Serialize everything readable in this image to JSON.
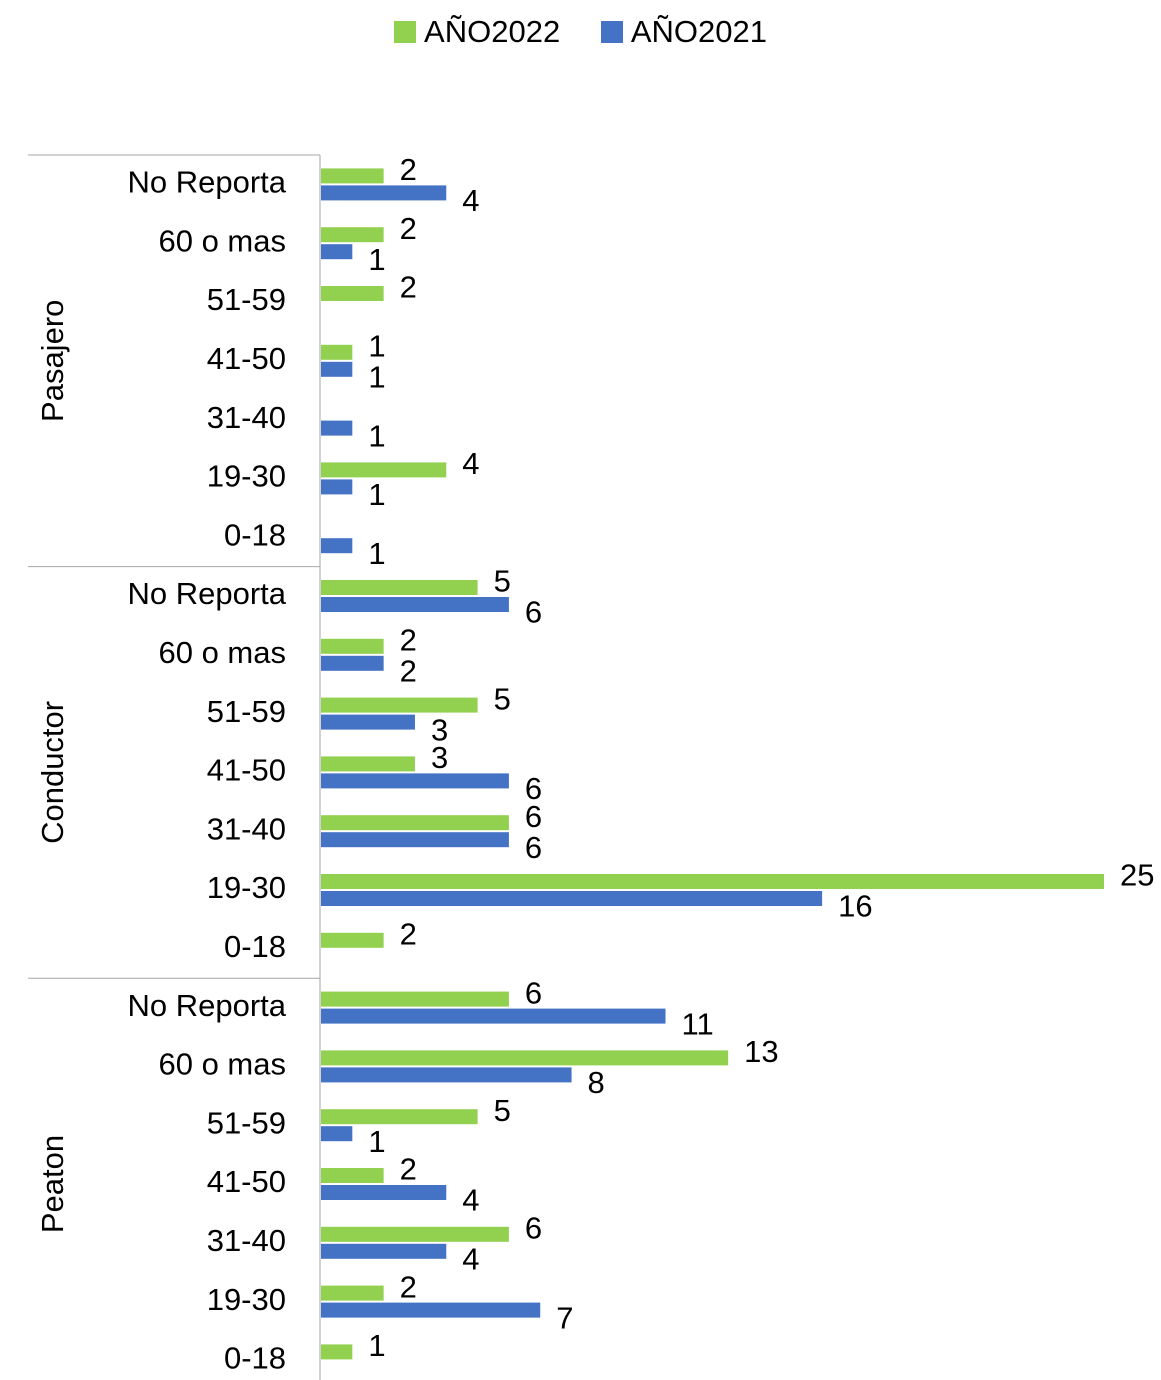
{
  "chart_data": {
    "type": "bar",
    "orientation": "horizontal",
    "legend": {
      "position": "top"
    },
    "grid": false,
    "xlim": [
      0,
      25
    ],
    "groups": [
      {
        "name": "Pasajero",
        "categories": [
          "No Reporta",
          "60 o mas",
          "51-59",
          "41-50",
          "31-40",
          "19-30",
          "0-18"
        ],
        "series": [
          {
            "name": "AÑO2022",
            "color": "#92d050",
            "values": [
              2,
              2,
              2,
              1,
              null,
              4,
              null
            ]
          },
          {
            "name": "AÑO2021",
            "color": "#4472c4",
            "values": [
              4,
              1,
              null,
              1,
              1,
              1,
              1
            ]
          }
        ]
      },
      {
        "name": "Conductor",
        "categories": [
          "No Reporta",
          "60 o mas",
          "51-59",
          "41-50",
          "31-40",
          "19-30",
          "0-18"
        ],
        "series": [
          {
            "name": "AÑO2022",
            "color": "#92d050",
            "values": [
              5,
              2,
              5,
              3,
              6,
              25,
              2
            ]
          },
          {
            "name": "AÑO2021",
            "color": "#4472c4",
            "values": [
              6,
              2,
              3,
              6,
              6,
              16,
              null
            ]
          }
        ]
      },
      {
        "name": "Peaton",
        "categories": [
          "No Reporta",
          "60 o mas",
          "51-59",
          "41-50",
          "31-40",
          "19-30",
          "0-18"
        ],
        "series": [
          {
            "name": "AÑO2022",
            "color": "#92d050",
            "values": [
              6,
              13,
              5,
              2,
              6,
              2,
              1
            ]
          },
          {
            "name": "AÑO2021",
            "color": "#4472c4",
            "values": [
              11,
              8,
              1,
              4,
              4,
              7,
              null
            ]
          }
        ]
      }
    ]
  }
}
